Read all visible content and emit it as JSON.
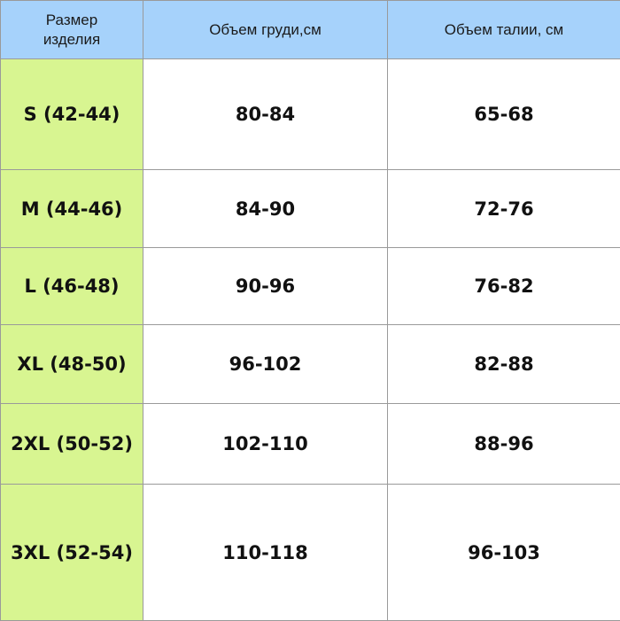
{
  "colors": {
    "header_bg": "#a6d2fb",
    "size_col_bg": "#d8f591",
    "border": "#9a9a9a"
  },
  "headers": [
    "Размер изделия",
    "Объем груди,см",
    "Объем талии, см"
  ],
  "rows": [
    {
      "size": "S (42-44)",
      "chest": "80-84",
      "waist": "65-68"
    },
    {
      "size": "M (44-46)",
      "chest": "84-90",
      "waist": "72-76"
    },
    {
      "size": "L (46-48)",
      "chest": "90-96",
      "waist": "76-82"
    },
    {
      "size": "XL (48-50)",
      "chest": "96-102",
      "waist": "82-88"
    },
    {
      "size": "2XL (50-52)",
      "chest": "102-110",
      "waist": "88-96"
    },
    {
      "size": "3XL (52-54)",
      "chest": "110-118",
      "waist": "96-103"
    }
  ]
}
